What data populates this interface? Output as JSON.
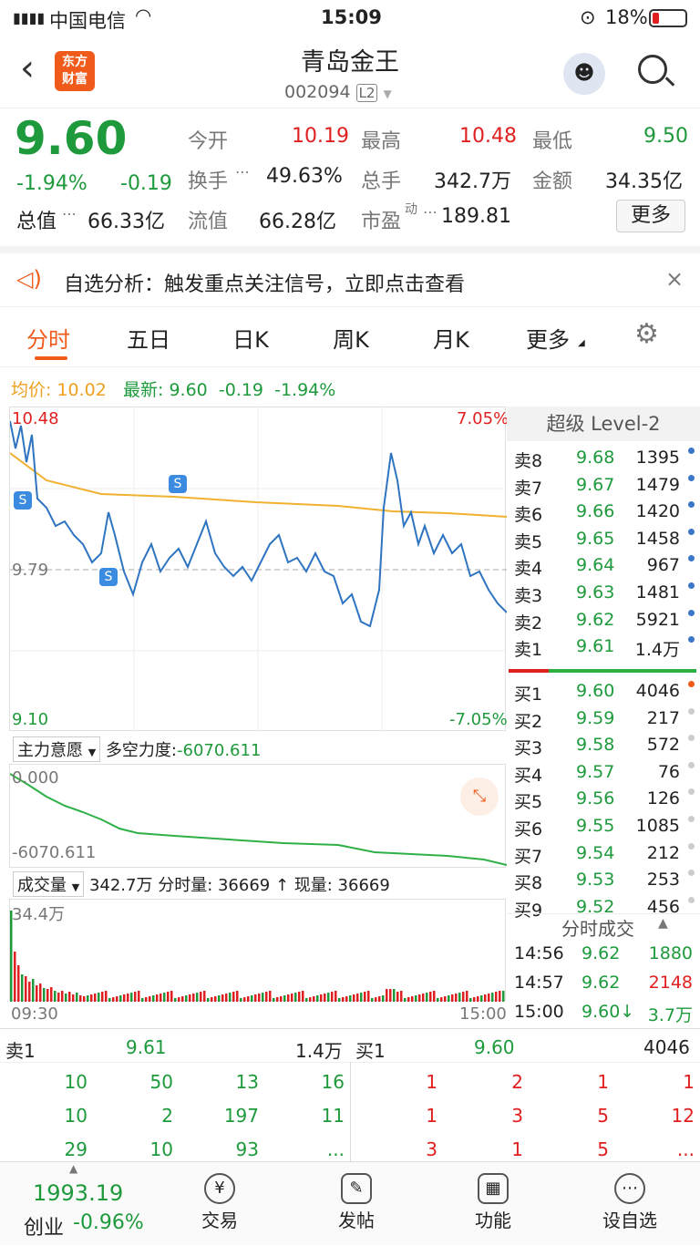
{
  "status": {
    "carrier": "中国电信",
    "time": "15:09",
    "battery": "18%"
  },
  "header": {
    "logo_line1": "东方",
    "logo_line2": "财富",
    "title": "青岛金王",
    "code": "002094",
    "badge": "L2"
  },
  "quote": {
    "price": "9.60",
    "pct": "-1.94%",
    "chg": "-0.19",
    "open_label": "今开",
    "open": "10.19",
    "high_label": "最高",
    "high": "10.48",
    "low_label": "最低",
    "low": "9.50",
    "turnover_label": "换手",
    "turnover": "49.63%",
    "vol_label": "总手",
    "vol": "342.7万",
    "amt_label": "金额",
    "amt": "34.35亿",
    "mcap_label": "总值",
    "mcap": "66.33亿",
    "float_label": "流值",
    "float": "66.28亿",
    "pe_label": "市盈",
    "pe_sup": "动",
    "pe": "189.81",
    "more": "更多"
  },
  "banner": {
    "text": "自选分析：触发重点关注信号，立即点击查看"
  },
  "tabs": [
    "分时",
    "五日",
    "日K",
    "周K",
    "月K",
    "更多"
  ],
  "info": {
    "avg_label": "均价:",
    "avg": "10.02",
    "last_label": "最新:",
    "last": "9.60",
    "chg": "-0.19",
    "pct": "-1.94%"
  },
  "chart": {
    "top_price": "10.48",
    "top_pct": "7.05%",
    "mid_price": "9.79",
    "bot_price": "9.10",
    "bot_pct": "-7.05%",
    "marker": "S",
    "force_label": "主力意愿",
    "force_text": "多空力度:",
    "force_val": "-6070.611",
    "force_top": "0.000",
    "force_bot": "-6070.611",
    "vol_label": "成交量",
    "vol_text": "342.7万 分时量: 36669 ↑ 现量: 36669",
    "vol_max": "34.4万",
    "t_start": "09:30",
    "t_end": "15:00"
  },
  "orderbook": {
    "title": "超级 Level-2",
    "sells": [
      {
        "l": "卖8",
        "p": "9.68",
        "v": "1395"
      },
      {
        "l": "卖7",
        "p": "9.67",
        "v": "1479"
      },
      {
        "l": "卖6",
        "p": "9.66",
        "v": "1420"
      },
      {
        "l": "卖5",
        "p": "9.65",
        "v": "1458"
      },
      {
        "l": "卖4",
        "p": "9.64",
        "v": "967"
      },
      {
        "l": "卖3",
        "p": "9.63",
        "v": "1481"
      },
      {
        "l": "卖2",
        "p": "9.62",
        "v": "5921"
      },
      {
        "l": "卖1",
        "p": "9.61",
        "v": "1.4万"
      }
    ],
    "buys": [
      {
        "l": "买1",
        "p": "9.60",
        "v": "4046"
      },
      {
        "l": "买2",
        "p": "9.59",
        "v": "217"
      },
      {
        "l": "买3",
        "p": "9.58",
        "v": "572"
      },
      {
        "l": "买4",
        "p": "9.57",
        "v": "76"
      },
      {
        "l": "买5",
        "p": "9.56",
        "v": "126"
      },
      {
        "l": "买6",
        "p": "9.55",
        "v": "1085"
      },
      {
        "l": "买7",
        "p": "9.54",
        "v": "212"
      },
      {
        "l": "买8",
        "p": "9.53",
        "v": "253"
      },
      {
        "l": "买9",
        "p": "9.52",
        "v": "456"
      }
    ]
  },
  "trades": {
    "title": "分时成交",
    "rows": [
      {
        "t": "14:56",
        "p": "9.62",
        "v": "1880"
      },
      {
        "t": "14:57",
        "p": "9.62",
        "v": "2148"
      },
      {
        "t": "15:00",
        "p": "9.60↓",
        "v": "3.7万"
      }
    ]
  },
  "queue": {
    "sell_label": "卖1",
    "sell_price": "9.61",
    "sell_vol": "1.4万",
    "buy_label": "买1",
    "buy_price": "9.60",
    "buy_vol": "4046",
    "sell_rows": [
      [
        "10",
        "50",
        "13",
        "16"
      ],
      [
        "10",
        "2",
        "197",
        "11"
      ],
      [
        "29",
        "10",
        "93",
        "..."
      ]
    ],
    "buy_rows": [
      [
        "1",
        "2",
        "1",
        "1"
      ],
      [
        "1",
        "3",
        "5",
        "12"
      ],
      [
        "3",
        "1",
        "5",
        "..."
      ]
    ]
  },
  "bottom": {
    "index_val": "1993.19",
    "index_name": "创业",
    "index_pct": "-0.96%",
    "items": [
      "交易",
      "发帖",
      "功能",
      "设自选"
    ]
  }
}
